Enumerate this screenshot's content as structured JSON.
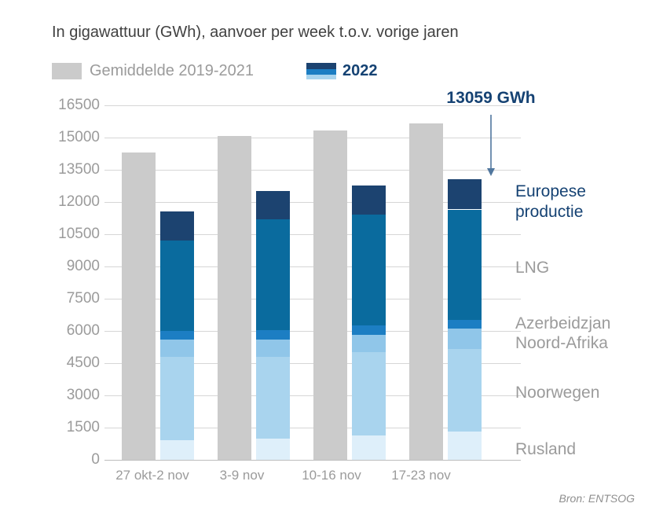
{
  "header": {
    "title": "In gigawattuur (GWh), aanvoer per week t.o.v. vorige jaren"
  },
  "legend": {
    "average": {
      "label": "Gemiddelde 2019-2021"
    },
    "year": {
      "label": "2022"
    }
  },
  "annotation": {
    "label": "13059 GWh"
  },
  "source": {
    "label": "Bron: ENTSOG"
  },
  "colors": {
    "title_text": "#414141",
    "axis_text": "#9b9b9b",
    "navy_text": "#154273",
    "average_bar": "#cbcbcb",
    "gridline": "#d6d6d6",
    "zero_line": "#bdbdbd",
    "arrow": "#51779e",
    "source_text": "#8f8f8f",
    "segments": {
      "rusland": "#deeffa",
      "noorwegen": "#a9d4ee",
      "noord_afrika": "#90c6e9",
      "azerbeidzjan": "#1c7ec3",
      "lng": "#0a6b9e",
      "europese_productie": "#1c4370"
    }
  },
  "chart_data": {
    "type": "bar",
    "title": "In gigawattuur (GWh), aanvoer per week t.o.v. vorige jaren",
    "xlabel": "",
    "ylabel": "GWh",
    "grid": true,
    "legend_position": "top-left",
    "categories": [
      "27 okt-2 nov",
      "3-9 nov",
      "10-16 nov",
      "17-23 nov"
    ],
    "ylim": [
      0,
      16500
    ],
    "y_ticks": [
      0,
      1500,
      3000,
      4500,
      6000,
      7500,
      9000,
      10500,
      12000,
      13500,
      15000,
      16500
    ],
    "series": [
      {
        "name": "Gemiddelde 2019-2021",
        "role": "average",
        "values": [
          14300,
          15050,
          15330,
          15650
        ]
      }
    ],
    "stacked_series_2022": [
      {
        "key": "rusland",
        "name": "Rusland",
        "values": [
          915,
          980,
          1130,
          1300
        ]
      },
      {
        "key": "noorwegen",
        "name": "Noorwegen",
        "values": [
          3885,
          3820,
          3870,
          3840
        ]
      },
      {
        "key": "noord_afrika",
        "name": "Noord-Afrika",
        "values": [
          800,
          800,
          800,
          950
        ]
      },
      {
        "key": "azerbeidzjan",
        "name": "Azerbeidzjan",
        "values": [
          400,
          430,
          440,
          430
        ]
      },
      {
        "key": "lng",
        "name": "LNG",
        "values": [
          4200,
          5170,
          5160,
          5120
        ]
      },
      {
        "key": "europese_productie",
        "name": "Europese productie",
        "values": [
          1350,
          1300,
          1350,
          1419
        ]
      }
    ],
    "totals_2022": [
      11550,
      12500,
      12750,
      13059
    ],
    "annotation": {
      "text": "13059 GWh",
      "target_category": "17-23 nov",
      "target_value": 13059
    },
    "right_labels": [
      {
        "key": "europese_productie",
        "lines": [
          "Europese",
          "productie"
        ],
        "emphasis": true
      },
      {
        "key": "lng",
        "lines": [
          "LNG"
        ],
        "emphasis": false
      },
      {
        "key": "azerbeidzjan",
        "lines": [
          "Azerbeidzjan"
        ],
        "emphasis": false
      },
      {
        "key": "noord_afrika",
        "lines": [
          "Noord-Afrika"
        ],
        "emphasis": false
      },
      {
        "key": "noorwegen",
        "lines": [
          "Noorwegen"
        ],
        "emphasis": false
      },
      {
        "key": "rusland",
        "lines": [
          "Rusland"
        ],
        "emphasis": false
      }
    ]
  }
}
